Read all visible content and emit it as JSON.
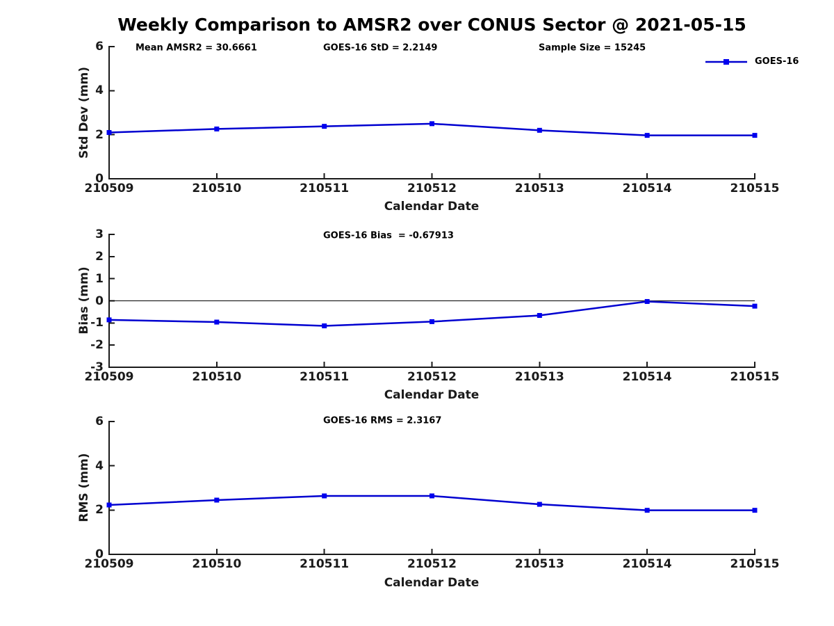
{
  "title": "Weekly Comparison to AMSR2 over CONUS Sector @ 2021-05-15",
  "legend": {
    "label": "GOES-16"
  },
  "colors": {
    "line": "#0000d0",
    "marker": "#0000ee",
    "axis": "#1a1a1a",
    "zero_line": "#000000",
    "text": "#000000"
  },
  "chart_data": [
    {
      "type": "line",
      "name": "std-dev",
      "title": "Weekly Comparison to AMSR2 over CONUS Sector @ 2021-05-15",
      "xlabel": "Calendar Date",
      "ylabel": "Std Dev (mm)",
      "x": [
        "210509",
        "210510",
        "210511",
        "210512",
        "210513",
        "210514",
        "210515"
      ],
      "ylim": [
        0,
        6
      ],
      "yticks": [
        0,
        2,
        4,
        6
      ],
      "grid": false,
      "zero_line": false,
      "legend_position": "top-right",
      "series": [
        {
          "name": "GOES-16",
          "values": [
            2.1,
            2.26,
            2.38,
            2.5,
            2.2,
            1.97,
            1.97
          ]
        }
      ],
      "annotations": [
        {
          "text": "Mean AMSR2 = 30.6661"
        },
        {
          "text": "GOES-16 StD = 2.2149"
        },
        {
          "text": "Sample Size = 15245"
        }
      ]
    },
    {
      "type": "line",
      "name": "bias",
      "xlabel": "Calendar Date",
      "ylabel": "Bias (mm)",
      "x": [
        "210509",
        "210510",
        "210511",
        "210512",
        "210513",
        "210514",
        "210515"
      ],
      "ylim": [
        -3,
        3
      ],
      "yticks": [
        -3,
        -2,
        -1,
        0,
        1,
        2,
        3
      ],
      "grid": false,
      "zero_line": true,
      "series": [
        {
          "name": "GOES-16",
          "values": [
            -0.86,
            -0.96,
            -1.13,
            -0.94,
            -0.66,
            -0.03,
            -0.24
          ]
        }
      ],
      "annotations": [
        {
          "text": "GOES-16 Bias  = -0.67913"
        }
      ]
    },
    {
      "type": "line",
      "name": "rms",
      "xlabel": "Calendar Date",
      "ylabel": "RMS (mm)",
      "x": [
        "210509",
        "210510",
        "210511",
        "210512",
        "210513",
        "210514",
        "210515"
      ],
      "ylim": [
        0,
        6
      ],
      "yticks": [
        0,
        2,
        4,
        6
      ],
      "grid": false,
      "zero_line": false,
      "series": [
        {
          "name": "GOES-16",
          "values": [
            2.23,
            2.45,
            2.64,
            2.64,
            2.26,
            1.99,
            1.99
          ]
        }
      ],
      "annotations": [
        {
          "text": "GOES-16 RMS = 2.3167"
        }
      ]
    }
  ]
}
